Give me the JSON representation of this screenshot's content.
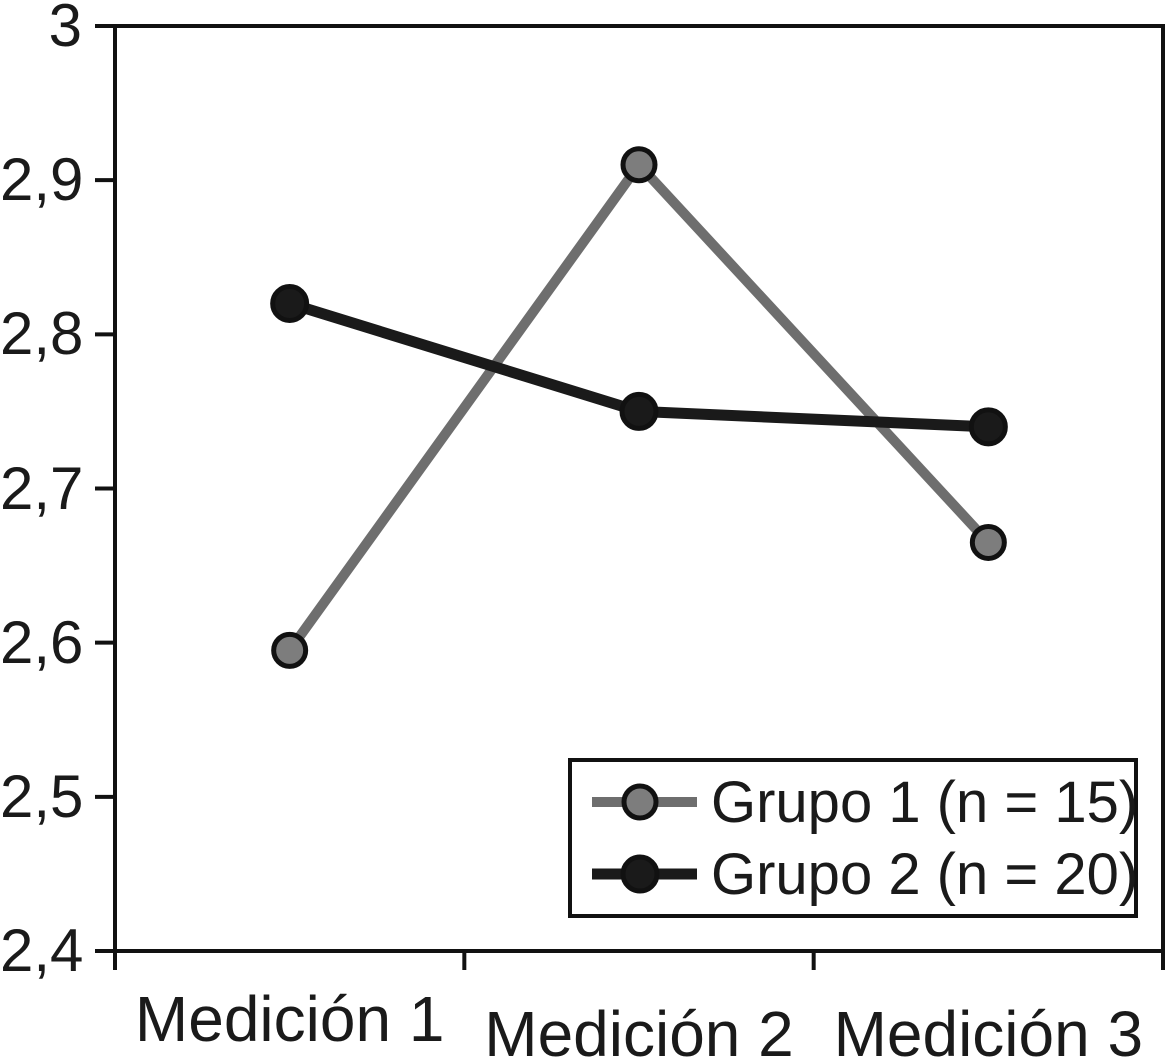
{
  "chart_data": {
    "type": "line",
    "title": "",
    "xlabel": "",
    "ylabel": "",
    "categories": [
      "Medición 1",
      "Medición 2",
      "Medición 3"
    ],
    "y_tick_labels": [
      "3",
      "2,9",
      "2,8",
      "2,7",
      "2,6",
      "2,5",
      "2,4"
    ],
    "y_tick_values": [
      3.0,
      2.9,
      2.8,
      2.7,
      2.6,
      2.5,
      2.4
    ],
    "ylim": [
      2.4,
      3.0
    ],
    "decimal_separator": ",",
    "grid": false,
    "plot_frame": true,
    "legend_position": "inside-bottom-right",
    "axis_color": "#111111",
    "background_color": "#ffffff",
    "series": [
      {
        "name": "Grupo 1 (n = 15)",
        "values": [
          2.595,
          2.91,
          2.665
        ],
        "line_color": "#6e6e6e",
        "marker_fill": "#7d7d7d",
        "marker_stroke": "#111111",
        "marker": "circle"
      },
      {
        "name": "Grupo 2 (n = 20)",
        "values": [
          2.82,
          2.75,
          2.74
        ],
        "line_color": "#1a1a1a",
        "marker_fill": "#1a1a1a",
        "marker_stroke": "#111111",
        "marker": "circle"
      }
    ]
  }
}
